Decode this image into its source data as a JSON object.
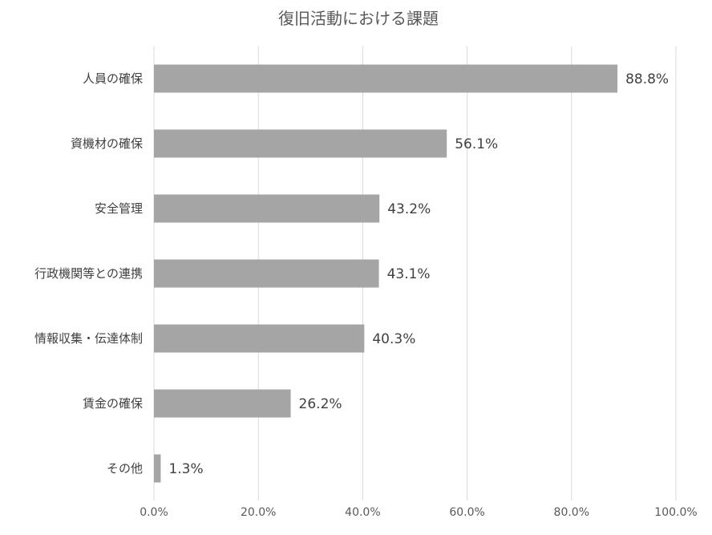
{
  "chart_data": {
    "type": "bar",
    "orientation": "horizontal",
    "title": "復旧活動における課題",
    "categories": [
      "人員の確保",
      "資機材の確保",
      "安全管理",
      "行政機関等との連携",
      "情報収集・伝達体制",
      "賃金の確保",
      "その他"
    ],
    "values": [
      88.8,
      56.1,
      43.2,
      43.1,
      40.3,
      26.2,
      1.3
    ],
    "data_labels": [
      "88.8%",
      "56.1%",
      "43.2%",
      "43.1%",
      "40.3%",
      "26.2%",
      "1.3%"
    ],
    "xlim": [
      0,
      100
    ],
    "x_ticks": [
      0,
      20,
      40,
      60,
      80,
      100
    ],
    "x_tick_labels": [
      "0.0%",
      "20.0%",
      "40.0%",
      "60.0%",
      "80.0%",
      "100.0%"
    ],
    "grid": "vertical",
    "legend": "none",
    "bar_color": "#a5a5a5",
    "xlabel": "",
    "ylabel": ""
  }
}
